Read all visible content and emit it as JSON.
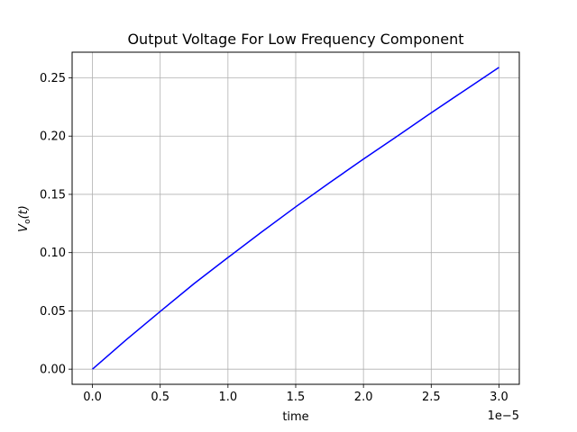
{
  "chart_data": {
    "type": "line",
    "title": "Output Voltage For Low Frequency Component",
    "xlabel": "time",
    "ylabel_main": "V",
    "ylabel_sub": "o",
    "ylabel_arg": "(t)",
    "x_offset_label": "1e−5",
    "xlim": [
      -0.15,
      3.15
    ],
    "ylim": [
      -0.013,
      0.272
    ],
    "x_ticks": [
      0.0,
      0.5,
      1.0,
      1.5,
      2.0,
      2.5,
      3.0
    ],
    "x_tick_labels": [
      "0.0",
      "0.5",
      "1.0",
      "1.5",
      "2.0",
      "2.5",
      "3.0"
    ],
    "y_ticks": [
      0.0,
      0.05,
      0.1,
      0.15,
      0.2,
      0.25
    ],
    "y_tick_labels": [
      "0.00",
      "0.05",
      "0.10",
      "0.15",
      "0.20",
      "0.25"
    ],
    "grid": true,
    "series": [
      {
        "color": "#0000ff",
        "x": [
          0.0,
          0.25,
          0.5,
          0.75,
          1.0,
          1.25,
          1.5,
          1.75,
          2.0,
          2.25,
          2.5,
          2.75,
          3.0
        ],
        "y": [
          0.0,
          0.0253,
          0.0495,
          0.0734,
          0.0958,
          0.1178,
          0.1393,
          0.16,
          0.1803,
          0.2,
          0.22,
          0.2395,
          0.259
        ]
      }
    ]
  }
}
